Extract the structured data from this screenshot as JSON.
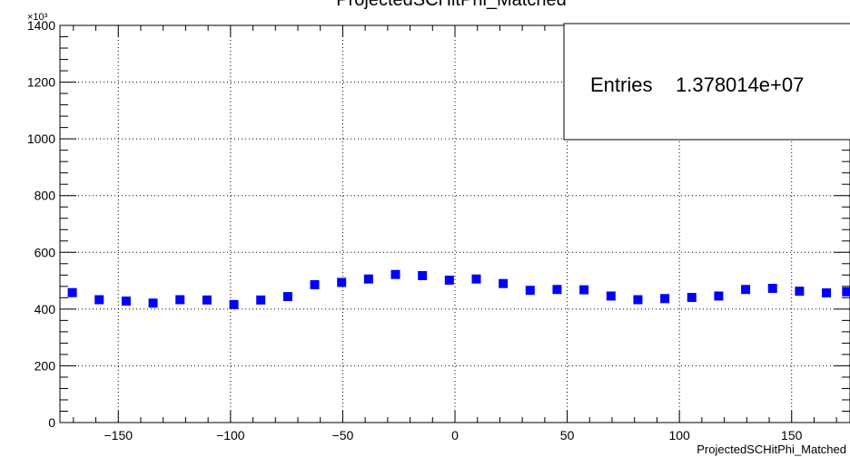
{
  "chart_data": {
    "type": "scatter",
    "title": "ProjectedSCHitPhi_Matched",
    "xlabel": "ProjectedSCHitPhi_Matched",
    "ylabel": "",
    "xlim": [
      -176,
      176
    ],
    "ylim": [
      0,
      1400
    ],
    "y_multiplier_label": "×10³",
    "grid": true,
    "marker_color": "#0000ff",
    "x_ticks": [
      -150,
      -100,
      -50,
      0,
      50,
      100,
      150
    ],
    "y_ticks": [
      0,
      200,
      400,
      600,
      800,
      1000,
      1200,
      1400
    ],
    "stats": {
      "label": "Entries",
      "value": "1.378014e+07"
    },
    "x": [
      -170.5,
      -158.5,
      -146.5,
      -134.5,
      -122.5,
      -110.5,
      -98.5,
      -86.5,
      -74.5,
      -62.5,
      -50.5,
      -38.5,
      -26.5,
      -14.5,
      -2.5,
      9.5,
      21.5,
      33.5,
      45.5,
      57.5,
      69.5,
      81.5,
      93.5,
      105.5,
      117.5,
      129.5,
      141.5,
      153.5,
      165.5,
      174.5
    ],
    "y": [
      458,
      433,
      428,
      421,
      433,
      432,
      416,
      432,
      444,
      486,
      494,
      506,
      522,
      518,
      502,
      506,
      490,
      466,
      469,
      468,
      446,
      433,
      437,
      441,
      446,
      469,
      473,
      463,
      457,
      461
    ]
  }
}
